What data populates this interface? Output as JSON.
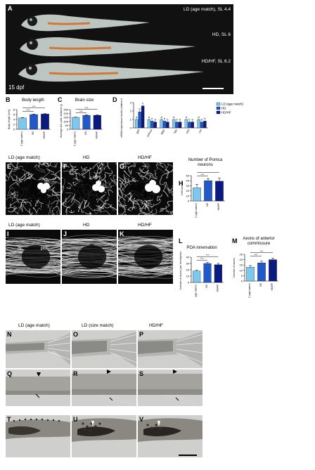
{
  "panelA": {
    "letter": "A",
    "labels": [
      "LD (age match), SL 4.4",
      "HD, SL 6",
      "HD/HF, SL 6.2"
    ],
    "age": "15 dpf"
  },
  "colors": {
    "ld": "#7ec8ef",
    "hd": "#2258c8",
    "hdhf": "#0a1a80"
  },
  "panelB": {
    "letter": "B",
    "title": "Body length",
    "ylabel": "Body length [mm]",
    "sig": [
      "***",
      "***"
    ]
  },
  "panelC": {
    "letter": "C",
    "title": "Brain size",
    "ylabel": "Average ant.-post. distance [µm]",
    "sig": [
      "***",
      "***"
    ]
  },
  "panelD": {
    "letter": "D",
    "ylabel": "mRNA expression levels (relative to LD)",
    "legend": [
      "LD (age match)",
      "HD",
      "HD/HF"
    ]
  },
  "panelE": {
    "letter": "E",
    "label": "LD (age match)"
  },
  "panelF": {
    "letter": "F",
    "label": "HD"
  },
  "panelG": {
    "letter": "G",
    "label": "HD/HF"
  },
  "panelH": {
    "letter": "H",
    "title": "Number of Pomca neurons",
    "ylabel": "Cell Number",
    "sig": [
      "***",
      "***"
    ]
  },
  "panelI": {
    "letter": "I",
    "label": "LD (age match)",
    "ac": "ac",
    "poc": "poc"
  },
  "panelJ": {
    "letter": "J",
    "label": "HD"
  },
  "panelK": {
    "letter": "K",
    "label": "HD/HF"
  },
  "panelL": {
    "letter": "L",
    "title": "POA innervation",
    "ylabel": "Number of axons (per hemisphere)",
    "sig": [
      "***",
      "***"
    ]
  },
  "panelM": {
    "letter": "M",
    "title": "Axons of anterior commissure",
    "ylabel": "Number of axons",
    "sig": [
      "***",
      "***"
    ]
  },
  "bottom": {
    "headers": [
      "LD (age match)",
      "LD (size match)",
      "HD/HF"
    ],
    "rows": [
      [
        "N",
        "O",
        "P"
      ],
      [
        "Q",
        "R",
        "S"
      ],
      [
        "T",
        "U",
        "V"
      ]
    ]
  },
  "xcats": [
    "LD (age match)",
    "HD",
    "HD/HF"
  ],
  "chart_data": [
    {
      "type": "bar",
      "title": "Body length",
      "categories": [
        "LD (age match)",
        "HD",
        "HD/HF"
      ],
      "values": [
        4.6,
        6.0,
        6.2
      ],
      "errors": [
        0.2,
        0.2,
        0.2
      ],
      "ylim": [
        0,
        8
      ],
      "yticks": [
        0,
        2,
        4,
        6,
        8
      ]
    },
    {
      "type": "bar",
      "title": "Brain size",
      "categories": [
        "LD (age match)",
        "HD",
        "HD/HF"
      ],
      "values": [
        152,
        178,
        178
      ],
      "errors": [
        4,
        5,
        5
      ],
      "ylim": [
        0,
        250
      ],
      "yticks": [
        0,
        50,
        100,
        150,
        200,
        250
      ]
    },
    {
      "type": "bar",
      "genes": [
        "ghrl",
        "pomca",
        "agrp",
        "npy",
        "cart",
        "crh"
      ],
      "series": [
        {
          "name": "LD (age match)",
          "values": [
            1.0,
            1.0,
            1.0,
            1.0,
            1.0,
            1.0
          ],
          "errors": [
            0.1,
            0.1,
            0.1,
            0.1,
            0.1,
            0.1
          ],
          "letters": [
            "a",
            "a",
            "a",
            "a",
            "a",
            "a"
          ]
        },
        {
          "name": "HD",
          "values": [
            1.9,
            0.8,
            0.8,
            0.7,
            0.7,
            0.7
          ],
          "errors": [
            0.15,
            0.1,
            0.1,
            0.1,
            0.1,
            0.1
          ],
          "letters": [
            "b",
            "b",
            "b",
            "b",
            "b",
            "b"
          ]
        },
        {
          "name": "HD/HF",
          "values": [
            2.6,
            0.7,
            0.7,
            0.7,
            0.7,
            0.8
          ],
          "errors": [
            0.15,
            0.1,
            0.1,
            0.1,
            0.1,
            0.1
          ],
          "letters": [
            "c",
            "b",
            "b",
            "b",
            "b",
            "b"
          ]
        }
      ],
      "ylim": [
        0,
        3
      ],
      "yticks": [
        0,
        1,
        2,
        3
      ]
    },
    {
      "type": "bar",
      "title": "Number of Pomca neurons",
      "categories": [
        "LD (age match)",
        "HD",
        "HD/HF"
      ],
      "values": [
        26,
        40,
        39
      ],
      "errors": [
        7,
        4,
        6
      ],
      "ylim": [
        0,
        50
      ],
      "yticks": [
        0,
        10,
        20,
        30,
        40,
        50
      ]
    },
    {
      "type": "bar",
      "title": "POA innervation",
      "categories": [
        "LD (age match)",
        "HD",
        "HD/HF"
      ],
      "values": [
        18,
        30,
        28
      ],
      "errors": [
        1.5,
        2,
        2
      ],
      "ylim": [
        0,
        40
      ],
      "yticks": [
        0,
        10,
        20,
        30,
        40
      ]
    },
    {
      "type": "bar",
      "title": "Axons of anterior commissure",
      "categories": [
        "LD (age match)",
        "HD",
        "HD/HF"
      ],
      "values": [
        13,
        17,
        20
      ],
      "errors": [
        1.5,
        1.5,
        1.5
      ],
      "ylim": [
        0,
        25
      ],
      "yticks": [
        0,
        5,
        10,
        15,
        20,
        25
      ]
    }
  ]
}
